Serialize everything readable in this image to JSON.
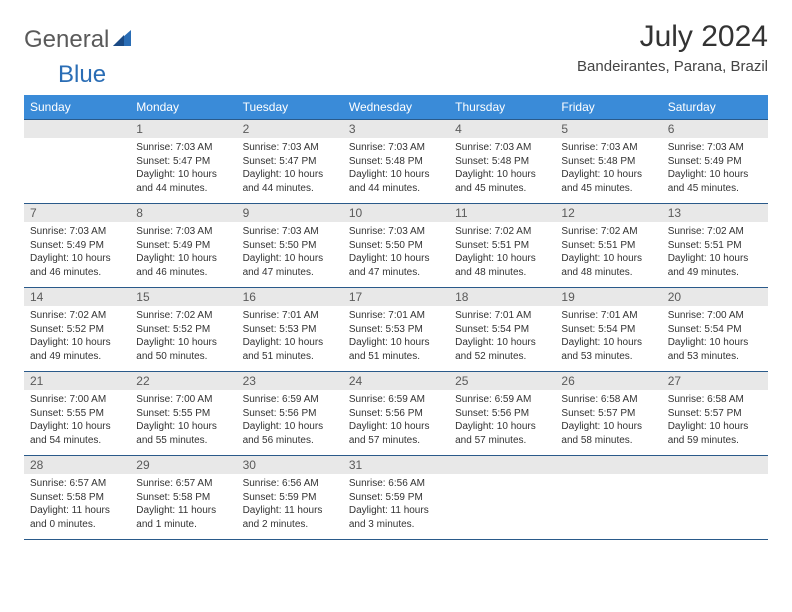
{
  "brand": {
    "part1": "General",
    "part2": "Blue"
  },
  "title": "July 2024",
  "location": "Bandeirantes, Parana, Brazil",
  "colors": {
    "header_bg": "#3a8bd8",
    "header_text": "#ffffff",
    "daynum_bg": "#e8e8e8",
    "daynum_text": "#5a5a5a",
    "border": "#2a5a8a",
    "body_text": "#333333",
    "logo_gray": "#5a5a5a",
    "logo_blue": "#2a6db5"
  },
  "weekdays": [
    "Sunday",
    "Monday",
    "Tuesday",
    "Wednesday",
    "Thursday",
    "Friday",
    "Saturday"
  ],
  "first_weekday_index": 1,
  "days": [
    {
      "n": 1,
      "sr": "7:03 AM",
      "ss": "5:47 PM",
      "dl": "10 hours and 44 minutes."
    },
    {
      "n": 2,
      "sr": "7:03 AM",
      "ss": "5:47 PM",
      "dl": "10 hours and 44 minutes."
    },
    {
      "n": 3,
      "sr": "7:03 AM",
      "ss": "5:48 PM",
      "dl": "10 hours and 44 minutes."
    },
    {
      "n": 4,
      "sr": "7:03 AM",
      "ss": "5:48 PM",
      "dl": "10 hours and 45 minutes."
    },
    {
      "n": 5,
      "sr": "7:03 AM",
      "ss": "5:48 PM",
      "dl": "10 hours and 45 minutes."
    },
    {
      "n": 6,
      "sr": "7:03 AM",
      "ss": "5:49 PM",
      "dl": "10 hours and 45 minutes."
    },
    {
      "n": 7,
      "sr": "7:03 AM",
      "ss": "5:49 PM",
      "dl": "10 hours and 46 minutes."
    },
    {
      "n": 8,
      "sr": "7:03 AM",
      "ss": "5:49 PM",
      "dl": "10 hours and 46 minutes."
    },
    {
      "n": 9,
      "sr": "7:03 AM",
      "ss": "5:50 PM",
      "dl": "10 hours and 47 minutes."
    },
    {
      "n": 10,
      "sr": "7:03 AM",
      "ss": "5:50 PM",
      "dl": "10 hours and 47 minutes."
    },
    {
      "n": 11,
      "sr": "7:02 AM",
      "ss": "5:51 PM",
      "dl": "10 hours and 48 minutes."
    },
    {
      "n": 12,
      "sr": "7:02 AM",
      "ss": "5:51 PM",
      "dl": "10 hours and 48 minutes."
    },
    {
      "n": 13,
      "sr": "7:02 AM",
      "ss": "5:51 PM",
      "dl": "10 hours and 49 minutes."
    },
    {
      "n": 14,
      "sr": "7:02 AM",
      "ss": "5:52 PM",
      "dl": "10 hours and 49 minutes."
    },
    {
      "n": 15,
      "sr": "7:02 AM",
      "ss": "5:52 PM",
      "dl": "10 hours and 50 minutes."
    },
    {
      "n": 16,
      "sr": "7:01 AM",
      "ss": "5:53 PM",
      "dl": "10 hours and 51 minutes."
    },
    {
      "n": 17,
      "sr": "7:01 AM",
      "ss": "5:53 PM",
      "dl": "10 hours and 51 minutes."
    },
    {
      "n": 18,
      "sr": "7:01 AM",
      "ss": "5:54 PM",
      "dl": "10 hours and 52 minutes."
    },
    {
      "n": 19,
      "sr": "7:01 AM",
      "ss": "5:54 PM",
      "dl": "10 hours and 53 minutes."
    },
    {
      "n": 20,
      "sr": "7:00 AM",
      "ss": "5:54 PM",
      "dl": "10 hours and 53 minutes."
    },
    {
      "n": 21,
      "sr": "7:00 AM",
      "ss": "5:55 PM",
      "dl": "10 hours and 54 minutes."
    },
    {
      "n": 22,
      "sr": "7:00 AM",
      "ss": "5:55 PM",
      "dl": "10 hours and 55 minutes."
    },
    {
      "n": 23,
      "sr": "6:59 AM",
      "ss": "5:56 PM",
      "dl": "10 hours and 56 minutes."
    },
    {
      "n": 24,
      "sr": "6:59 AM",
      "ss": "5:56 PM",
      "dl": "10 hours and 57 minutes."
    },
    {
      "n": 25,
      "sr": "6:59 AM",
      "ss": "5:56 PM",
      "dl": "10 hours and 57 minutes."
    },
    {
      "n": 26,
      "sr": "6:58 AM",
      "ss": "5:57 PM",
      "dl": "10 hours and 58 minutes."
    },
    {
      "n": 27,
      "sr": "6:58 AM",
      "ss": "5:57 PM",
      "dl": "10 hours and 59 minutes."
    },
    {
      "n": 28,
      "sr": "6:57 AM",
      "ss": "5:58 PM",
      "dl": "11 hours and 0 minutes."
    },
    {
      "n": 29,
      "sr": "6:57 AM",
      "ss": "5:58 PM",
      "dl": "11 hours and 1 minute."
    },
    {
      "n": 30,
      "sr": "6:56 AM",
      "ss": "5:59 PM",
      "dl": "11 hours and 2 minutes."
    },
    {
      "n": 31,
      "sr": "6:56 AM",
      "ss": "5:59 PM",
      "dl": "11 hours and 3 minutes."
    }
  ],
  "labels": {
    "sunrise": "Sunrise:",
    "sunset": "Sunset:",
    "daylight": "Daylight:"
  }
}
